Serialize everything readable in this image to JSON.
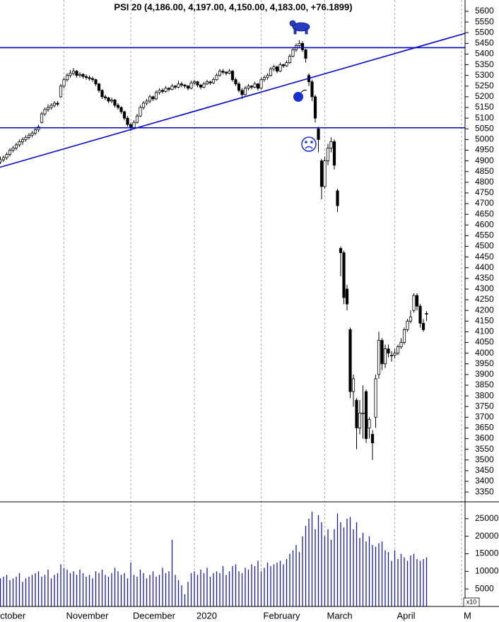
{
  "chart_data": [
    {
      "type": "candlestick",
      "title": "PSI 20 (4,186.00, 4,197.00, 4,150.00, 4,183.00, +76.1899)",
      "categories": [
        "October",
        null,
        null,
        null,
        null,
        null,
        null,
        null,
        null,
        null,
        null,
        null,
        null,
        null,
        null,
        null,
        null,
        null,
        null,
        null,
        null,
        null,
        null,
        "November",
        null,
        null,
        null,
        null,
        null,
        null,
        null,
        null,
        null,
        null,
        null,
        null,
        null,
        null,
        null,
        null,
        null,
        null,
        null,
        null,
        "December",
        null,
        null,
        null,
        null,
        null,
        null,
        null,
        null,
        null,
        null,
        null,
        null,
        null,
        null,
        null,
        null,
        null,
        null,
        null,
        "2020",
        null,
        null,
        null,
        null,
        null,
        null,
        null,
        null,
        null,
        null,
        null,
        null,
        null,
        null,
        null,
        null,
        null,
        null,
        null,
        null,
        "February",
        null,
        null,
        null,
        null,
        null,
        null,
        null,
        null,
        null,
        null,
        null,
        null,
        null,
        null,
        null,
        null,
        null,
        null,
        null,
        "March",
        null,
        null,
        null,
        null,
        null,
        null,
        null,
        null,
        null,
        null,
        null,
        null,
        null,
        null,
        null,
        null,
        null,
        null,
        null,
        null,
        null,
        "April",
        null,
        null,
        null,
        null,
        null,
        null,
        null,
        null,
        null,
        null,
        null,
        null,
        null,
        null,
        null,
        null,
        null,
        null,
        null,
        null,
        "M"
      ],
      "values": [
        null,
        null,
        null,
        [
          4895,
          4920,
          4885,
          4905
        ],
        [
          4905,
          4925,
          4895,
          4915
        ],
        [
          4915,
          4940,
          4905,
          4930
        ],
        [
          4930,
          4960,
          4920,
          4950
        ],
        [
          4950,
          4970,
          4940,
          4960
        ],
        [
          4960,
          4985,
          4950,
          4975
        ],
        [
          4975,
          5000,
          4965,
          4990
        ],
        [
          4990,
          5010,
          4975,
          5000
        ],
        [
          5000,
          5020,
          4990,
          5010
        ],
        [
          5010,
          5030,
          5000,
          5020
        ],
        [
          5020,
          5040,
          5010,
          5030
        ],
        [
          5030,
          5055,
          5020,
          5045
        ],
        [
          5045,
          5070,
          5035,
          5060
        ],
        [
          5080,
          5130,
          5075,
          5120
        ],
        [
          5120,
          5150,
          5110,
          5140
        ],
        [
          5140,
          5165,
          5130,
          5150
        ],
        [
          5150,
          5170,
          5140,
          5160
        ],
        [
          5160,
          5180,
          5150,
          5170
        ],
        [
          5170,
          5180,
          5155,
          5165
        ],
        [
          5200,
          5260,
          5195,
          5250
        ],
        [
          5250,
          5290,
          5240,
          5280
        ],
        [
          5280,
          5310,
          5270,
          5300
        ],
        [
          5300,
          5325,
          5290,
          5310
        ],
        [
          5310,
          5335,
          5300,
          5320
        ],
        [
          5320,
          5325,
          5290,
          5300
        ],
        [
          5300,
          5315,
          5290,
          5305
        ],
        [
          5305,
          5310,
          5285,
          5295
        ],
        [
          5295,
          5305,
          5280,
          5290
        ],
        [
          5290,
          5300,
          5275,
          5285
        ],
        [
          5285,
          5295,
          5270,
          5280
        ],
        [
          5280,
          5285,
          5250,
          5260
        ],
        [
          5260,
          5265,
          5220,
          5230
        ],
        [
          5230,
          5235,
          5190,
          5200
        ],
        [
          5200,
          5210,
          5185,
          5195
        ],
        [
          5195,
          5200,
          5170,
          5180
        ],
        [
          5180,
          5195,
          5170,
          5185
        ],
        [
          5185,
          5190,
          5150,
          5160
        ],
        [
          5160,
          5170,
          5140,
          5150
        ],
        [
          5150,
          5155,
          5120,
          5130
        ],
        [
          5130,
          5135,
          5090,
          5100
        ],
        [
          5100,
          5110,
          5060,
          5070
        ],
        [
          5070,
          5080,
          5040,
          5055
        ],
        [
          5055,
          5090,
          5050,
          5080
        ],
        [
          5080,
          5120,
          5075,
          5110
        ],
        [
          5110,
          5160,
          5105,
          5150
        ],
        [
          5150,
          5180,
          5140,
          5170
        ],
        [
          5170,
          5190,
          5160,
          5180
        ],
        [
          5180,
          5210,
          5170,
          5200
        ],
        [
          5200,
          5205,
          5180,
          5190
        ],
        [
          5190,
          5230,
          5185,
          5220
        ],
        [
          5220,
          5240,
          5210,
          5230
        ],
        [
          5230,
          5240,
          5215,
          5225
        ],
        [
          5225,
          5250,
          5220,
          5240
        ],
        [
          5240,
          5245,
          5225,
          5235
        ],
        [
          5235,
          5260,
          5230,
          5250
        ],
        [
          5250,
          5255,
          5235,
          5245
        ],
        [
          5245,
          5275,
          5240,
          5260
        ],
        [
          5260,
          5270,
          5245,
          5255
        ],
        [
          5255,
          5260,
          5240,
          5250
        ],
        [
          5250,
          5255,
          5230,
          5240
        ],
        [
          5240,
          5275,
          5235,
          5265
        ],
        [
          5265,
          5280,
          5255,
          5270
        ],
        [
          5270,
          5275,
          5245,
          5255
        ],
        [
          5255,
          5260,
          5235,
          5245
        ],
        [
          5245,
          5270,
          5240,
          5260
        ],
        [
          5260,
          5280,
          5255,
          5270
        ],
        [
          5270,
          5275,
          5255,
          5265
        ],
        [
          5265,
          5290,
          5260,
          5280
        ],
        [
          5280,
          5310,
          5275,
          5300
        ],
        [
          5300,
          5330,
          5295,
          5320
        ],
        [
          5320,
          5330,
          5305,
          5315
        ],
        [
          5315,
          5320,
          5300,
          5310
        ],
        [
          5310,
          5330,
          5305,
          5320
        ],
        [
          5320,
          5325,
          5270,
          5280
        ],
        [
          5280,
          5290,
          5250,
          5260
        ],
        [
          5260,
          5270,
          5220,
          5230
        ],
        [
          5230,
          5240,
          5190,
          5210
        ],
        [
          5210,
          5250,
          5205,
          5240
        ],
        [
          5240,
          5260,
          5230,
          5250
        ],
        [
          5250,
          5255,
          5235,
          5245
        ],
        [
          5245,
          5270,
          5240,
          5260
        ],
        [
          5260,
          5265,
          5230,
          5240
        ],
        [
          5240,
          5290,
          5235,
          5280
        ],
        [
          5280,
          5300,
          5270,
          5290
        ],
        [
          5290,
          5310,
          5280,
          5300
        ],
        [
          5300,
          5340,
          5295,
          5330
        ],
        [
          5330,
          5350,
          5320,
          5340
        ],
        [
          5340,
          5345,
          5310,
          5320
        ],
        [
          5320,
          5360,
          5315,
          5350
        ],
        [
          5350,
          5355,
          5335,
          5345
        ],
        [
          5345,
          5370,
          5340,
          5360
        ],
        [
          5360,
          5400,
          5355,
          5390
        ],
        [
          5390,
          5430,
          5385,
          5420
        ],
        [
          5420,
          5450,
          5410,
          5440
        ],
        [
          5440,
          5465,
          5430,
          5450
        ],
        [
          5450,
          5460,
          5410,
          5420
        ],
        [
          5420,
          5425,
          5360,
          5380
        ],
        [
          5300,
          5310,
          5250,
          5270
        ],
        [
          5270,
          5280,
          5180,
          5200
        ],
        [
          5200,
          5210,
          5080,
          5100
        ],
        [
          5050,
          5060,
          4940,
          5000
        ],
        [
          4900,
          4910,
          4720,
          4780
        ],
        [
          4780,
          4920,
          4770,
          4900
        ],
        [
          4900,
          4980,
          4880,
          4960
        ],
        [
          4960,
          5010,
          4940,
          4990
        ],
        [
          4990,
          5000,
          4860,
          4880
        ],
        [
          4760,
          4770,
          4660,
          4690
        ],
        [
          4490,
          4500,
          4360,
          4470
        ],
        [
          4470,
          4480,
          4230,
          4260
        ],
        [
          4300,
          4320,
          4200,
          4230
        ],
        [
          4110,
          4120,
          3790,
          3820
        ],
        [
          3820,
          3900,
          3750,
          3880
        ],
        [
          3780,
          3790,
          3550,
          3650
        ],
        [
          3650,
          3780,
          3620,
          3720
        ],
        [
          3720,
          3850,
          3600,
          3720
        ],
        [
          3820,
          3830,
          3580,
          3600
        ],
        [
          3650,
          3700,
          3600,
          3690
        ],
        [
          3620,
          3640,
          3500,
          3580
        ],
        [
          3700,
          3900,
          3650,
          3880
        ],
        [
          3900,
          4100,
          3880,
          4060
        ],
        [
          4060,
          4070,
          3920,
          3950
        ],
        [
          3950,
          4040,
          3930,
          4020
        ],
        [
          4020,
          4040,
          3980,
          4000
        ],
        [
          3990,
          4010,
          3960,
          3990
        ],
        [
          3990,
          4020,
          3975,
          4000
        ],
        [
          4000,
          4040,
          3990,
          4030
        ],
        [
          4030,
          4070,
          4020,
          4050
        ],
        [
          4050,
          4120,
          4040,
          4110
        ],
        [
          4110,
          4160,
          4100,
          4150
        ],
        [
          4150,
          4200,
          4140,
          4170
        ],
        [
          4200,
          4280,
          4190,
          4270
        ],
        [
          4270,
          4280,
          4200,
          4220
        ],
        [
          4220,
          4230,
          4120,
          4140
        ],
        [
          4140,
          4160,
          4100,
          4110
        ],
        [
          4186,
          4197,
          4150,
          4183
        ],
        null,
        null,
        null,
        null,
        null,
        null,
        null,
        null,
        null,
        null,
        null
      ],
      "color_up": "#ffffff",
      "color_down": "#000000",
      "ylim": [
        3304,
        5653
      ],
      "yticks": [
        3350,
        3400,
        3450,
        3500,
        3550,
        3600,
        3650,
        3700,
        3750,
        3800,
        3850,
        3900,
        3950,
        4000,
        4050,
        4100,
        4150,
        4200,
        4250,
        4300,
        4350,
        4400,
        4450,
        4500,
        4550,
        4600,
        4650,
        4700,
        4750,
        4800,
        4850,
        4900,
        4950,
        5000,
        5050,
        5100,
        5150,
        5200,
        5250,
        5300,
        5350,
        5400,
        5450,
        5500,
        5550,
        5600
      ],
      "hlines": [
        5430,
        5055
      ],
      "trendline": [
        4870,
        5497
      ],
      "line_color": "#0000cc",
      "grid": true
    },
    {
      "type": "volume",
      "values": [
        null,
        null,
        null,
        8000,
        8500,
        9000,
        7500,
        8000,
        8500,
        9500,
        7000,
        8000,
        8500,
        9000,
        9500,
        10000,
        8500,
        9000,
        10500,
        8000,
        9000,
        9500,
        12000,
        11000,
        10500,
        9500,
        10000,
        9000,
        10500,
        9500,
        8500,
        9000,
        8000,
        10000,
        9500,
        10500,
        9000,
        8500,
        9500,
        11000,
        10000,
        9000,
        9500,
        8000,
        12500,
        9000,
        8500,
        10500,
        9500,
        8000,
        9000,
        10000,
        8500,
        9000,
        11000,
        9500,
        10000,
        19000,
        9000,
        7500,
        6000,
        3500,
        7000,
        9500,
        10000,
        9000,
        10500,
        9500,
        11000,
        8500,
        9500,
        10000,
        9500,
        11500,
        9000,
        10000,
        11500,
        12000,
        10000,
        9500,
        11000,
        10500,
        12000,
        11500,
        13000,
        10000,
        11000,
        12500,
        11500,
        12000,
        12500,
        13000,
        12000,
        13500,
        15000,
        16000,
        17500,
        15500,
        20000,
        23000,
        25000,
        27000,
        22000,
        26000,
        24000,
        20000,
        22000,
        19000,
        22000,
        26500,
        24000,
        22500,
        25000,
        25500,
        22000,
        24000,
        19500,
        21000,
        18500,
        20000,
        17500,
        17000,
        18000,
        18500,
        16000,
        15500,
        13000,
        16000,
        13500,
        15000,
        14000,
        13000,
        14500,
        15000,
        13500,
        13000,
        13500,
        14000,
        null,
        null,
        null,
        null,
        null,
        null,
        null,
        null,
        null,
        null,
        null
      ],
      "color": "#1a1a9c",
      "ylim": [
        0,
        29800
      ],
      "yticks": [
        5000,
        10000,
        15000,
        20000,
        25000
      ],
      "unit_label": "x10"
    }
  ]
}
